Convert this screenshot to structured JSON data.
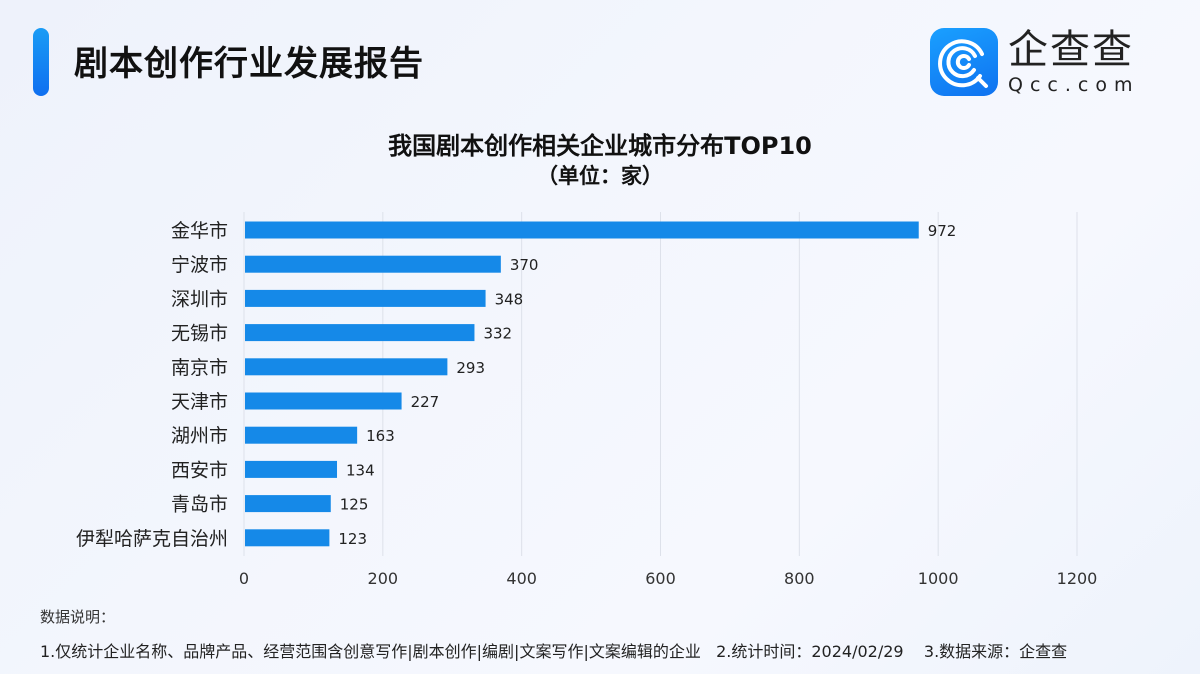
{
  "header": {
    "report_title": "剧本创作行业发展报告",
    "logo_cn": "企查查",
    "logo_en": "Qcc.com",
    "logo_icon": "qcc-logo-icon"
  },
  "colors": {
    "bar": "#1589e8",
    "accent": "#1a8cf5",
    "grid": "#dde1ea"
  },
  "chart_data": {
    "type": "bar",
    "orientation": "horizontal",
    "title": "我国剧本创作相关企业城市分布TOP10",
    "subtitle": "（单位：家）",
    "categories": [
      "金华市",
      "宁波市",
      "深圳市",
      "无锡市",
      "南京市",
      "天津市",
      "湖州市",
      "西安市",
      "青岛市",
      "伊犁哈萨克自治州"
    ],
    "values": [
      972,
      370,
      348,
      332,
      293,
      227,
      163,
      134,
      125,
      123
    ],
    "xlim": [
      0,
      1200
    ],
    "xticks": [
      0,
      200,
      400,
      600,
      800,
      1000,
      1200
    ],
    "xlabel": "",
    "ylabel": "",
    "grid": "vertical",
    "data_labels": true
  },
  "notes": {
    "heading": "数据说明：",
    "line": "1.仅统计企业名称、品牌产品、经营范围含创意写作|剧本创作|编剧|文案写作|文案编辑的企业   2.统计时间：2024/02/29    3.数据来源：企查查"
  }
}
